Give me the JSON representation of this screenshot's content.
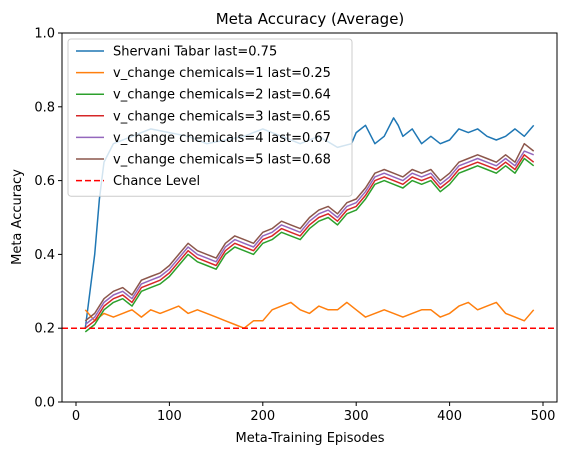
{
  "chart_data": {
    "type": "line",
    "title": "Meta Accuracy (Average)",
    "xlabel": "Meta-Training Episodes",
    "ylabel": "Meta Accuracy",
    "xlim": [
      -15,
      515
    ],
    "ylim": [
      0.0,
      1.0
    ],
    "xticks": [
      0,
      100,
      200,
      300,
      400,
      500
    ],
    "yticks": [
      0.0,
      0.2,
      0.4,
      0.6,
      0.8,
      1.0
    ],
    "xtick_labels": [
      "0",
      "100",
      "200",
      "300",
      "400",
      "500"
    ],
    "ytick_labels": [
      "0.0",
      "0.2",
      "0.4",
      "0.6",
      "0.8",
      "1.0"
    ],
    "grid": false,
    "legend_position": "upper-left",
    "series": [
      {
        "name": "Shervani Tabar last=0.75",
        "color": "#1f77b4",
        "points": [
          [
            10,
            0.2
          ],
          [
            15,
            0.3
          ],
          [
            20,
            0.4
          ],
          [
            25,
            0.55
          ],
          [
            30,
            0.65
          ],
          [
            40,
            0.7
          ],
          [
            60,
            0.72
          ],
          [
            80,
            0.74
          ],
          [
            100,
            0.73
          ],
          [
            120,
            0.72
          ],
          [
            140,
            0.7
          ],
          [
            160,
            0.71
          ],
          [
            180,
            0.72
          ],
          [
            200,
            0.74
          ],
          [
            220,
            0.72
          ],
          [
            240,
            0.7
          ],
          [
            260,
            0.72
          ],
          [
            280,
            0.69
          ],
          [
            295,
            0.7
          ],
          [
            300,
            0.73
          ],
          [
            310,
            0.75
          ],
          [
            320,
            0.7
          ],
          [
            330,
            0.72
          ],
          [
            340,
            0.77
          ],
          [
            345,
            0.75
          ],
          [
            350,
            0.72
          ],
          [
            360,
            0.74
          ],
          [
            370,
            0.7
          ],
          [
            380,
            0.72
          ],
          [
            390,
            0.7
          ],
          [
            400,
            0.71
          ],
          [
            410,
            0.74
          ],
          [
            420,
            0.73
          ],
          [
            430,
            0.74
          ],
          [
            440,
            0.72
          ],
          [
            450,
            0.71
          ],
          [
            460,
            0.72
          ],
          [
            470,
            0.74
          ],
          [
            480,
            0.72
          ],
          [
            490,
            0.75
          ]
        ]
      },
      {
        "name": "v_change chemicals=1 last=0.25",
        "color": "#ff7f0e",
        "points": [
          [
            10,
            0.25
          ],
          [
            20,
            0.22
          ],
          [
            30,
            0.24
          ],
          [
            40,
            0.23
          ],
          [
            50,
            0.24
          ],
          [
            60,
            0.25
          ],
          [
            70,
            0.23
          ],
          [
            80,
            0.25
          ],
          [
            90,
            0.24
          ],
          [
            100,
            0.25
          ],
          [
            110,
            0.26
          ],
          [
            120,
            0.24
          ],
          [
            130,
            0.25
          ],
          [
            140,
            0.24
          ],
          [
            150,
            0.23
          ],
          [
            160,
            0.22
          ],
          [
            170,
            0.21
          ],
          [
            180,
            0.2
          ],
          [
            190,
            0.22
          ],
          [
            200,
            0.22
          ],
          [
            210,
            0.25
          ],
          [
            220,
            0.26
          ],
          [
            230,
            0.27
          ],
          [
            240,
            0.25
          ],
          [
            250,
            0.24
          ],
          [
            260,
            0.26
          ],
          [
            270,
            0.25
          ],
          [
            280,
            0.25
          ],
          [
            290,
            0.27
          ],
          [
            300,
            0.25
          ],
          [
            310,
            0.23
          ],
          [
            320,
            0.24
          ],
          [
            330,
            0.25
          ],
          [
            340,
            0.24
          ],
          [
            350,
            0.23
          ],
          [
            360,
            0.24
          ],
          [
            370,
            0.25
          ],
          [
            380,
            0.25
          ],
          [
            390,
            0.23
          ],
          [
            400,
            0.24
          ],
          [
            410,
            0.26
          ],
          [
            420,
            0.27
          ],
          [
            430,
            0.25
          ],
          [
            440,
            0.26
          ],
          [
            450,
            0.27
          ],
          [
            460,
            0.24
          ],
          [
            470,
            0.23
          ],
          [
            480,
            0.22
          ],
          [
            490,
            0.25
          ]
        ]
      },
      {
        "name": "v_change chemicals=2 last=0.64",
        "color": "#2ca02c",
        "points": [
          [
            10,
            0.19
          ],
          [
            20,
            0.21
          ],
          [
            30,
            0.25
          ],
          [
            40,
            0.27
          ],
          [
            50,
            0.28
          ],
          [
            60,
            0.26
          ],
          [
            70,
            0.3
          ],
          [
            80,
            0.31
          ],
          [
            90,
            0.32
          ],
          [
            100,
            0.34
          ],
          [
            110,
            0.37
          ],
          [
            120,
            0.4
          ],
          [
            130,
            0.38
          ],
          [
            140,
            0.37
          ],
          [
            150,
            0.36
          ],
          [
            160,
            0.4
          ],
          [
            170,
            0.42
          ],
          [
            180,
            0.41
          ],
          [
            190,
            0.4
          ],
          [
            200,
            0.43
          ],
          [
            210,
            0.44
          ],
          [
            220,
            0.46
          ],
          [
            230,
            0.45
          ],
          [
            240,
            0.44
          ],
          [
            250,
            0.47
          ],
          [
            260,
            0.49
          ],
          [
            270,
            0.5
          ],
          [
            280,
            0.48
          ],
          [
            290,
            0.51
          ],
          [
            300,
            0.52
          ],
          [
            310,
            0.55
          ],
          [
            320,
            0.59
          ],
          [
            330,
            0.6
          ],
          [
            340,
            0.59
          ],
          [
            350,
            0.58
          ],
          [
            360,
            0.6
          ],
          [
            370,
            0.59
          ],
          [
            380,
            0.6
          ],
          [
            390,
            0.57
          ],
          [
            400,
            0.59
          ],
          [
            410,
            0.62
          ],
          [
            420,
            0.63
          ],
          [
            430,
            0.64
          ],
          [
            440,
            0.63
          ],
          [
            450,
            0.62
          ],
          [
            460,
            0.64
          ],
          [
            470,
            0.62
          ],
          [
            480,
            0.66
          ],
          [
            490,
            0.64
          ]
        ]
      },
      {
        "name": "v_change chemicals=3 last=0.65",
        "color": "#d62728",
        "points": [
          [
            10,
            0.2
          ],
          [
            20,
            0.22
          ],
          [
            30,
            0.26
          ],
          [
            40,
            0.28
          ],
          [
            50,
            0.29
          ],
          [
            60,
            0.27
          ],
          [
            70,
            0.31
          ],
          [
            80,
            0.32
          ],
          [
            90,
            0.33
          ],
          [
            100,
            0.35
          ],
          [
            110,
            0.38
          ],
          [
            120,
            0.41
          ],
          [
            130,
            0.39
          ],
          [
            140,
            0.38
          ],
          [
            150,
            0.37
          ],
          [
            160,
            0.41
          ],
          [
            170,
            0.43
          ],
          [
            180,
            0.42
          ],
          [
            190,
            0.41
          ],
          [
            200,
            0.44
          ],
          [
            210,
            0.45
          ],
          [
            220,
            0.47
          ],
          [
            230,
            0.46
          ],
          [
            240,
            0.45
          ],
          [
            250,
            0.48
          ],
          [
            260,
            0.5
          ],
          [
            270,
            0.51
          ],
          [
            280,
            0.49
          ],
          [
            290,
            0.52
          ],
          [
            300,
            0.53
          ],
          [
            310,
            0.56
          ],
          [
            320,
            0.6
          ],
          [
            330,
            0.61
          ],
          [
            340,
            0.6
          ],
          [
            350,
            0.59
          ],
          [
            360,
            0.61
          ],
          [
            370,
            0.6
          ],
          [
            380,
            0.61
          ],
          [
            390,
            0.58
          ],
          [
            400,
            0.6
          ],
          [
            410,
            0.63
          ],
          [
            420,
            0.64
          ],
          [
            430,
            0.65
          ],
          [
            440,
            0.64
          ],
          [
            450,
            0.63
          ],
          [
            460,
            0.65
          ],
          [
            470,
            0.63
          ],
          [
            480,
            0.67
          ],
          [
            490,
            0.65
          ]
        ]
      },
      {
        "name": "v_change chemicals=4 last=0.67",
        "color": "#9467bd",
        "points": [
          [
            10,
            0.21
          ],
          [
            20,
            0.23
          ],
          [
            30,
            0.27
          ],
          [
            40,
            0.29
          ],
          [
            50,
            0.3
          ],
          [
            60,
            0.28
          ],
          [
            70,
            0.32
          ],
          [
            80,
            0.33
          ],
          [
            90,
            0.34
          ],
          [
            100,
            0.36
          ],
          [
            110,
            0.39
          ],
          [
            120,
            0.42
          ],
          [
            130,
            0.4
          ],
          [
            140,
            0.39
          ],
          [
            150,
            0.38
          ],
          [
            160,
            0.42
          ],
          [
            170,
            0.44
          ],
          [
            180,
            0.43
          ],
          [
            190,
            0.42
          ],
          [
            200,
            0.45
          ],
          [
            210,
            0.46
          ],
          [
            220,
            0.48
          ],
          [
            230,
            0.47
          ],
          [
            240,
            0.46
          ],
          [
            250,
            0.49
          ],
          [
            260,
            0.51
          ],
          [
            270,
            0.52
          ],
          [
            280,
            0.5
          ],
          [
            290,
            0.53
          ],
          [
            300,
            0.54
          ],
          [
            310,
            0.57
          ],
          [
            320,
            0.61
          ],
          [
            330,
            0.62
          ],
          [
            340,
            0.61
          ],
          [
            350,
            0.6
          ],
          [
            360,
            0.62
          ],
          [
            370,
            0.61
          ],
          [
            380,
            0.62
          ],
          [
            390,
            0.59
          ],
          [
            400,
            0.61
          ],
          [
            410,
            0.64
          ],
          [
            420,
            0.65
          ],
          [
            430,
            0.66
          ],
          [
            440,
            0.65
          ],
          [
            450,
            0.64
          ],
          [
            460,
            0.66
          ],
          [
            470,
            0.64
          ],
          [
            480,
            0.68
          ],
          [
            490,
            0.67
          ]
        ]
      },
      {
        "name": "v_change chemicals=5 last=0.68",
        "color": "#8c564b",
        "points": [
          [
            10,
            0.22
          ],
          [
            20,
            0.24
          ],
          [
            30,
            0.28
          ],
          [
            40,
            0.3
          ],
          [
            50,
            0.31
          ],
          [
            60,
            0.29
          ],
          [
            70,
            0.33
          ],
          [
            80,
            0.34
          ],
          [
            90,
            0.35
          ],
          [
            100,
            0.37
          ],
          [
            110,
            0.4
          ],
          [
            120,
            0.43
          ],
          [
            130,
            0.41
          ],
          [
            140,
            0.4
          ],
          [
            150,
            0.39
          ],
          [
            160,
            0.43
          ],
          [
            170,
            0.45
          ],
          [
            180,
            0.44
          ],
          [
            190,
            0.43
          ],
          [
            200,
            0.46
          ],
          [
            210,
            0.47
          ],
          [
            220,
            0.49
          ],
          [
            230,
            0.48
          ],
          [
            240,
            0.47
          ],
          [
            250,
            0.5
          ],
          [
            260,
            0.52
          ],
          [
            270,
            0.53
          ],
          [
            280,
            0.51
          ],
          [
            290,
            0.54
          ],
          [
            300,
            0.55
          ],
          [
            310,
            0.58
          ],
          [
            320,
            0.62
          ],
          [
            330,
            0.63
          ],
          [
            340,
            0.62
          ],
          [
            350,
            0.61
          ],
          [
            360,
            0.63
          ],
          [
            370,
            0.62
          ],
          [
            380,
            0.63
          ],
          [
            390,
            0.6
          ],
          [
            400,
            0.62
          ],
          [
            410,
            0.65
          ],
          [
            420,
            0.66
          ],
          [
            430,
            0.67
          ],
          [
            440,
            0.66
          ],
          [
            450,
            0.65
          ],
          [
            460,
            0.67
          ],
          [
            470,
            0.65
          ],
          [
            480,
            0.7
          ],
          [
            490,
            0.68
          ]
        ]
      }
    ],
    "reference_line": {
      "name": "Chance Level",
      "y": 0.2,
      "color": "#ff0000",
      "style": "dashed"
    }
  }
}
